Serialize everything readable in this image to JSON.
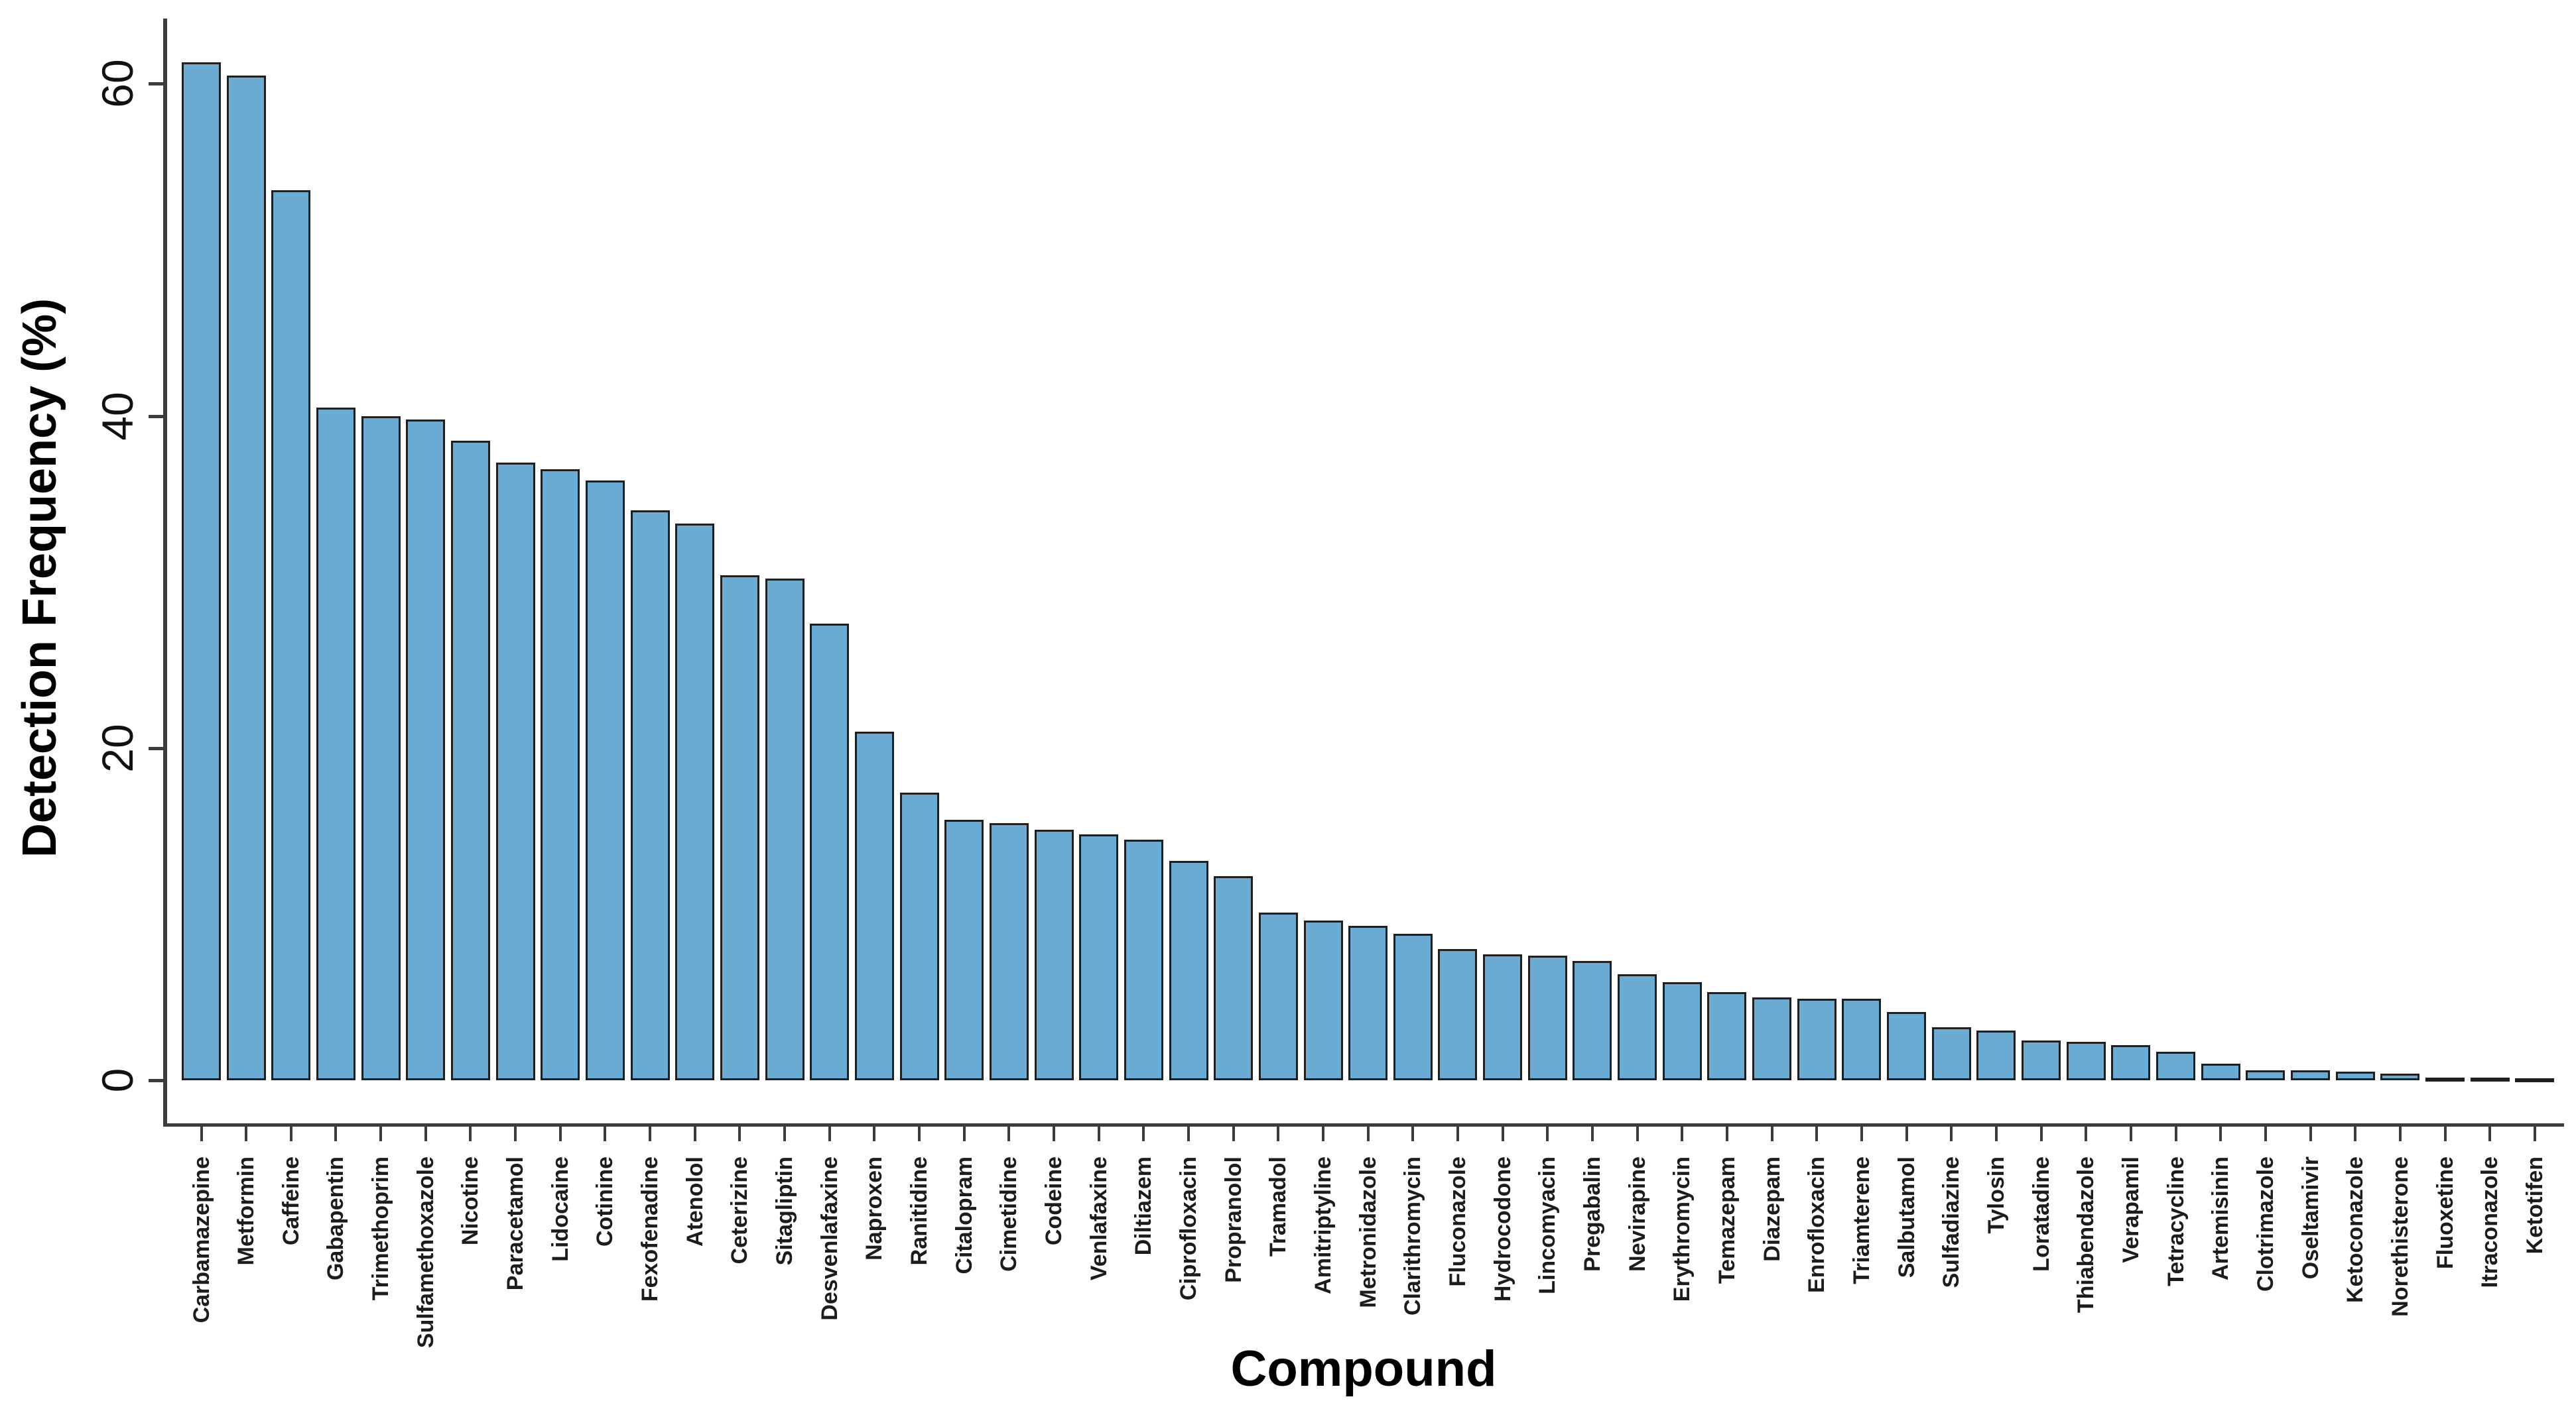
{
  "figure": {
    "background": "#ffffff"
  },
  "chart_data": {
    "type": "bar",
    "title": "",
    "xlabel": "Compound",
    "ylabel": "Detection Frequency (%)",
    "categories": [
      "Carbamazepine",
      "Metformin",
      "Caffeine",
      "Gabapentin",
      "Trimethoprim",
      "Sulfamethoxazole",
      "Nicotine",
      "Paracetamol",
      "Lidocaine",
      "Cotinine",
      "Fexofenadine",
      "Atenolol",
      "Ceterizine",
      "Sitagliptin",
      "Desvenlafaxine",
      "Naproxen",
      "Ranitidine",
      "Citalopram",
      "Cimetidine",
      "Codeine",
      "Venlafaxine",
      "Diltiazem",
      "Ciprofloxacin",
      "Propranolol",
      "Tramadol",
      "Amitriptyline",
      "Metronidazole",
      "Clarithromycin",
      "Fluconazole",
      "Hydrocodone",
      "Lincomyacin",
      "Pregabalin",
      "Nevirapine",
      "Erythromycin",
      "Temazepam",
      "Diazepam",
      "Enrofloxacin",
      "Triamterene",
      "Salbutamol",
      "Sulfadiazine",
      "Tylosin",
      "Loratadine",
      "Thiabendazole",
      "Verapamil",
      "Tetracycline",
      "Artemisinin",
      "Clotrimazole",
      "Oseltamivir",
      "Ketoconazole",
      "Norethisterone",
      "Fluoxetine",
      "Itraconazole",
      "Ketotifen"
    ],
    "values": [
      61.3,
      60.5,
      53.6,
      40.5,
      40.0,
      39.8,
      38.5,
      37.2,
      36.8,
      36.1,
      34.3,
      33.5,
      30.4,
      30.2,
      27.5,
      21.0,
      17.3,
      15.7,
      15.5,
      15.1,
      14.8,
      14.5,
      13.2,
      12.3,
      10.1,
      9.6,
      9.3,
      8.8,
      7.9,
      7.6,
      7.5,
      7.2,
      6.4,
      5.9,
      5.3,
      5.0,
      4.9,
      4.9,
      4.1,
      3.2,
      3.0,
      2.4,
      2.3,
      2.1,
      1.7,
      1.0,
      0.6,
      0.6,
      0.5,
      0.4,
      0.15,
      0.15,
      0.1
    ],
    "yticks": [
      0,
      20,
      40,
      60
    ],
    "ylim": [
      0,
      65
    ],
    "grid": false,
    "legend_position": "none",
    "bar_fill": "#6aabd3",
    "bar_edge": "#1f1f1f",
    "axis_color": "#3c3c3c",
    "text_color": "#111111"
  }
}
